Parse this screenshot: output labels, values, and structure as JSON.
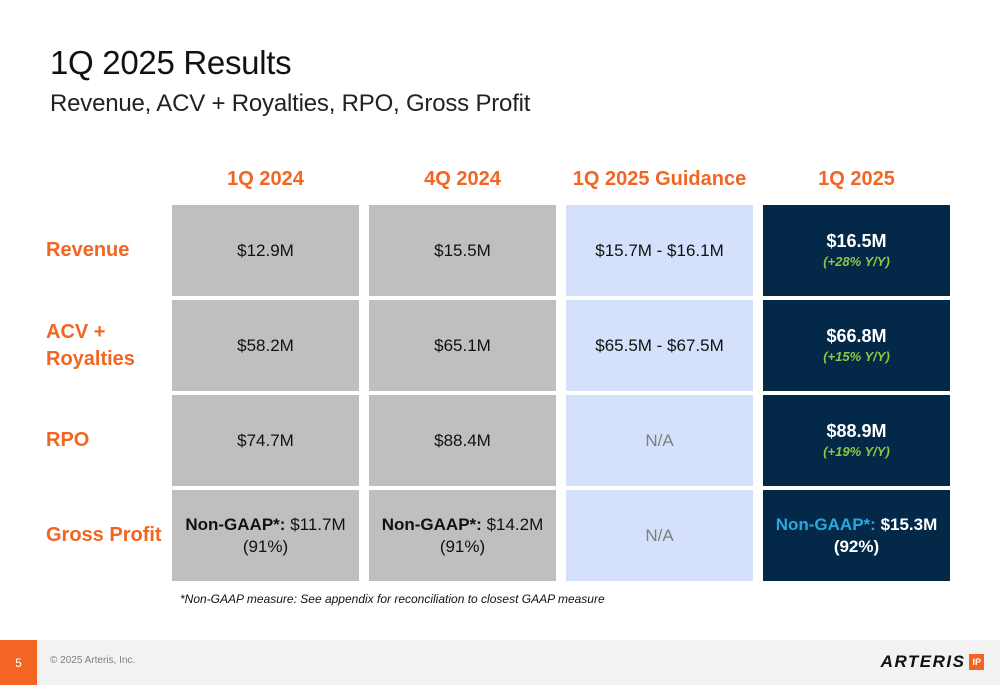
{
  "slide": {
    "title": "1Q 2025 Results",
    "subtitle": "Revenue, ACV + Royalties, RPO, Gross Profit"
  },
  "columns": [
    "1Q 2024",
    "4Q 2024",
    "1Q 2025 Guidance",
    "1Q 2025"
  ],
  "rows": [
    {
      "label": "Revenue",
      "q1_2024": "$12.9M",
      "q4_2024": "$15.5M",
      "guidance": "$15.7M - $16.1M",
      "q1_2025": "$16.5M",
      "q1_2025_yoy": "(+28% Y/Y)"
    },
    {
      "label": "ACV + Royalties",
      "q1_2024": "$58.2M",
      "q4_2024": "$65.1M",
      "guidance": "$65.5M - $67.5M",
      "q1_2025": "$66.8M",
      "q1_2025_yoy": "(+15% Y/Y)"
    },
    {
      "label": "RPO",
      "q1_2024": "$74.7M",
      "q4_2024": "$88.4M",
      "guidance": "N/A",
      "q1_2025": "$88.9M",
      "q1_2025_yoy": "(+19% Y/Y)"
    },
    {
      "label": "Gross Profit",
      "nongaap_label": "Non-GAAP*:",
      "q1_2024_value": "$11.7M",
      "q1_2024_margin": "(91%)",
      "q4_2024_value": "$14.2M",
      "q4_2024_margin": "(91%)",
      "guidance": "N/A",
      "q1_2025_value": "$15.3M",
      "q1_2025_margin": "(92%)"
    }
  ],
  "footnote": "*Non-GAAP measure: See appendix for reconciliation to closest GAAP measure",
  "footer": {
    "page_number": "5",
    "copyright": "© 2025 Arteris, Inc.",
    "logo_text": "ARTERIS",
    "logo_badge": "IP"
  },
  "colors": {
    "accent": "#f26522",
    "gray_cell": "#bfbfbf",
    "guidance_cell": "#d5e0fb",
    "dark_cell": "#042848",
    "yoy_green": "#8dc63f",
    "nongaap_blue": "#29a8e0"
  }
}
